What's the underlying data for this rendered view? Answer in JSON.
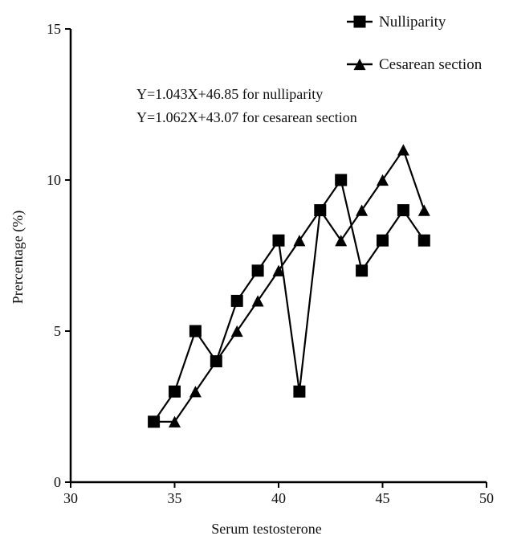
{
  "chart_data": {
    "type": "line",
    "title": "",
    "xlabel": "Serum testosterone",
    "ylabel": "Prercentage (%)",
    "xlim": [
      30,
      50
    ],
    "ylim": [
      0,
      15
    ],
    "x_ticks": [
      30,
      35,
      40,
      45,
      50
    ],
    "y_ticks": [
      0,
      5,
      10,
      15
    ],
    "grid": false,
    "legend_position": "top-right",
    "series": [
      {
        "name": "Nulliparity",
        "marker": "square",
        "color": "#000000",
        "x": [
          34,
          35,
          36,
          37,
          38,
          39,
          40,
          41,
          42,
          43,
          44,
          45,
          46,
          47
        ],
        "y": [
          2,
          3,
          5,
          4,
          6,
          7,
          8,
          3,
          9,
          10,
          7,
          8,
          9,
          8
        ]
      },
      {
        "name": "Cesarean section",
        "marker": "triangle",
        "color": "#000000",
        "x": [
          34,
          35,
          36,
          37,
          38,
          39,
          40,
          41,
          42,
          43,
          44,
          45,
          46,
          47
        ],
        "y": [
          2,
          2,
          3,
          4,
          5,
          6,
          7,
          8,
          9,
          8,
          9,
          10,
          11,
          9
        ]
      }
    ],
    "annotations": [
      "Y=1.043X+46.85 for nulliparity",
      "Y=1.062X+43.07 for cesarean section"
    ]
  }
}
